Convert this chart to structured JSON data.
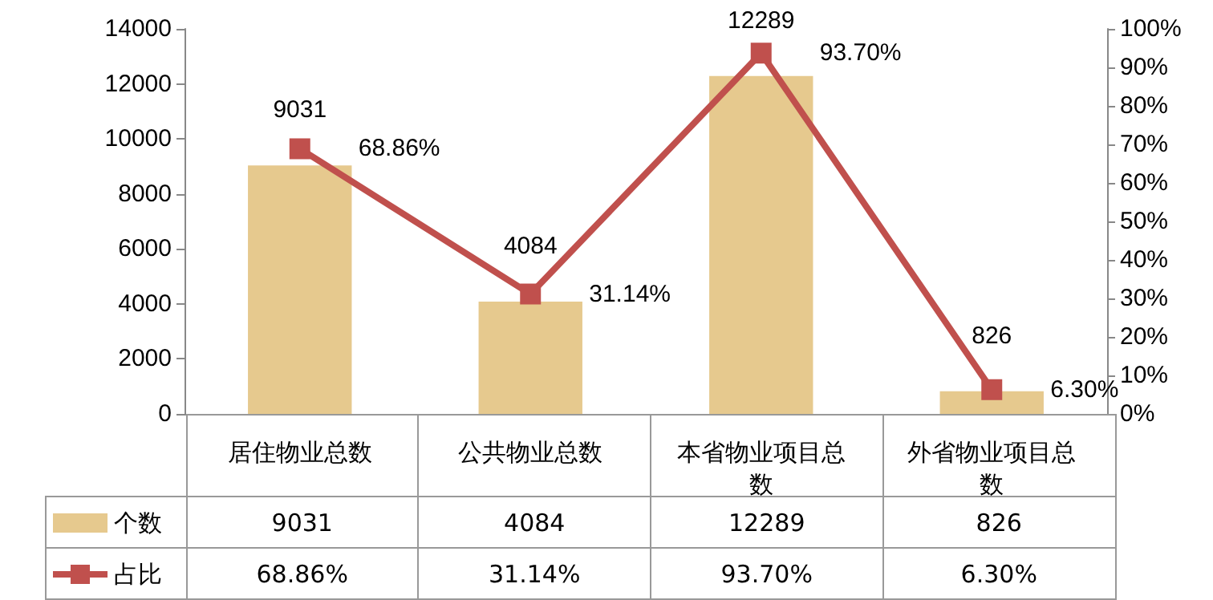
{
  "chart_data": {
    "type": "bar",
    "categories": [
      "居住物业总数",
      "公共物业总数",
      "本省物业项目总数",
      "外省物业项目总数"
    ],
    "series": [
      {
        "name": "个数",
        "color": "#e6c98e",
        "values": [
          9031,
          4084,
          12289,
          826
        ],
        "value_labels": [
          "9031",
          "4084",
          "12289",
          "826"
        ]
      },
      {
        "name": "占比",
        "type": "line",
        "axis": "y2",
        "color": "#c0504d",
        "values": [
          68.86,
          31.14,
          93.7,
          6.3
        ],
        "value_labels": [
          "68.86%",
          "31.14%",
          "93.70%",
          "6.30%"
        ]
      }
    ],
    "ylim": [
      0,
      14000
    ],
    "yticks": [
      0,
      2000,
      4000,
      6000,
      8000,
      10000,
      12000,
      14000
    ],
    "y2lim": [
      0,
      100
    ],
    "y2ticks": [
      {
        "value": 0,
        "label": "0%"
      },
      {
        "value": 10,
        "label": "10%"
      },
      {
        "value": 20,
        "label": "20%"
      },
      {
        "value": 30,
        "label": "30%"
      },
      {
        "value": 40,
        "label": "40%"
      },
      {
        "value": 50,
        "label": "50%"
      },
      {
        "value": 60,
        "label": "60%"
      },
      {
        "value": 70,
        "label": "70%"
      },
      {
        "value": 80,
        "label": "80%"
      },
      {
        "value": 90,
        "label": "90%"
      },
      {
        "value": 100,
        "label": "100%"
      }
    ],
    "grid": false,
    "legend": "bottom",
    "marker": "square"
  }
}
